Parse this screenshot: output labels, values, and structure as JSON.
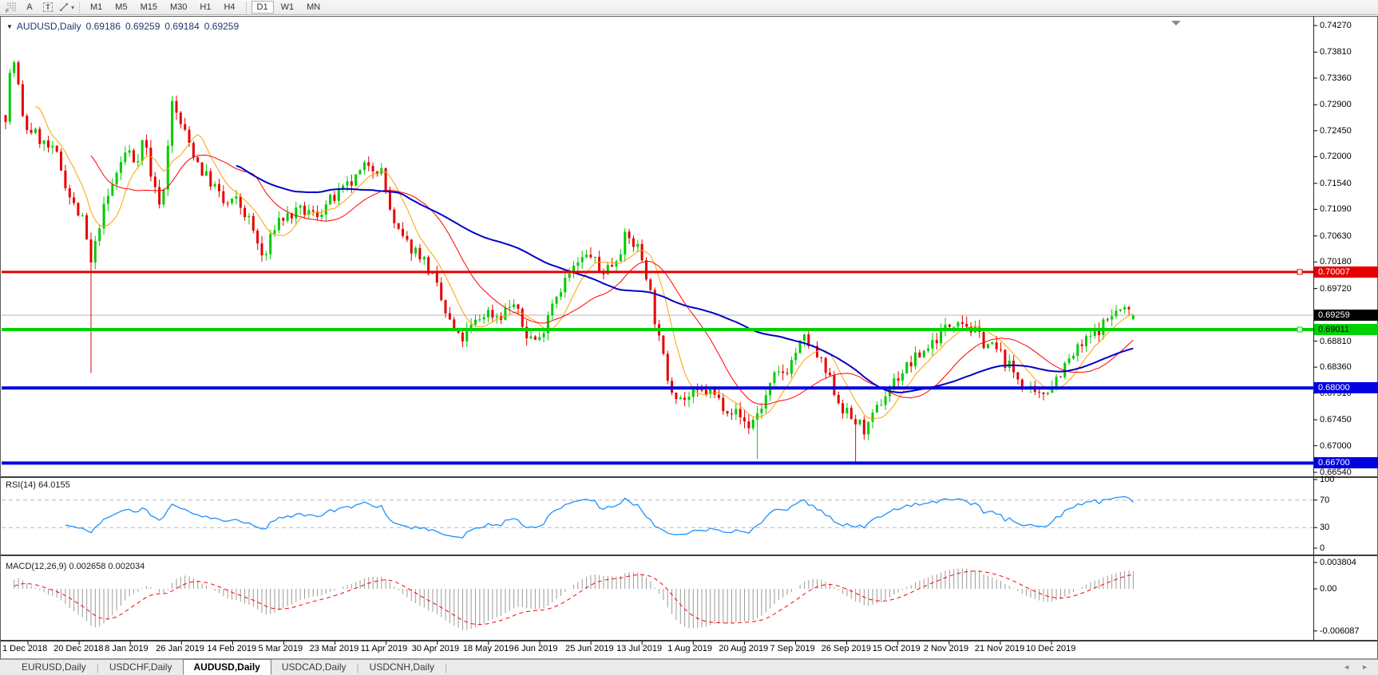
{
  "icons": {
    "collapse_triangle": "▼",
    "dropdown_caret": "▾",
    "scroll_left": "◄",
    "scroll_right": "►",
    "tab_divider": "|"
  },
  "toolbar": {
    "tools": [
      {
        "name": "dotted-grid-icon",
        "label": "F"
      },
      {
        "name": "letter-a-icon",
        "label": "A"
      },
      {
        "name": "text-box-icon",
        "label": "T"
      },
      {
        "name": "cursor-style-icon",
        "label": ""
      }
    ],
    "timeframes": [
      "M1",
      "M5",
      "M15",
      "M30",
      "H1",
      "H4",
      "D1",
      "W1",
      "MN"
    ],
    "active_timeframe": "D1",
    "separator_before": "D1"
  },
  "chart_header": {
    "symbol": "AUDUSD,Daily",
    "open": "0.69186",
    "high": "0.69259",
    "low": "0.69184",
    "close": "0.69259"
  },
  "price_axis": {
    "labels": [
      "0.74270",
      "0.73810",
      "0.73360",
      "0.72900",
      "0.72450",
      "0.72000",
      "0.71540",
      "0.71090",
      "0.70630",
      "0.70180",
      "0.69720",
      "0.68810",
      "0.68360",
      "0.67910",
      "0.67450",
      "0.67000",
      "0.66540"
    ],
    "badges": [
      {
        "value": "0.70007",
        "bg": "#e60000",
        "fg": "#ffffff"
      },
      {
        "value": "0.69259",
        "bg": "#000000",
        "fg": "#ffffff"
      },
      {
        "value": "0.69011",
        "bg": "#00d200",
        "fg": "#000000"
      },
      {
        "value": "0.68000",
        "bg": "#0000e0",
        "fg": "#ffffff"
      },
      {
        "value": "0.66700",
        "bg": "#0000e0",
        "fg": "#ffffff"
      }
    ]
  },
  "indicators": {
    "rsi": {
      "title": "RSI(14) 64.0155",
      "axis_labels": [
        "100",
        "70",
        "30",
        "0"
      ]
    },
    "macd": {
      "title": "MACD(12,26,9) 0.002658 0.002034",
      "axis_labels": [
        "0.003804",
        "0.00",
        "-0.006087"
      ]
    }
  },
  "time_axis": {
    "labels": [
      "1 Dec 2018",
      "20 Dec 2018",
      "8 Jan 2019",
      "26 Jan 2019",
      "14 Feb 2019",
      "5 Mar 2019",
      "23 Mar 2019",
      "11 Apr 2019",
      "30 Apr 2019",
      "18 May 2019",
      "6 Jun 2019",
      "25 Jun 2019",
      "13 Jul 2019",
      "1 Aug 2019",
      "20 Aug 2019",
      "7 Sep 2019",
      "26 Sep 2019",
      "15 Oct 2019",
      "2 Nov 2019",
      "21 Nov 2019",
      "10 Dec 2019"
    ]
  },
  "tabs": {
    "items": [
      {
        "label": "EURUSD,Daily",
        "active": false
      },
      {
        "label": "USDCHF,Daily",
        "active": false
      },
      {
        "label": "AUDUSD,Daily",
        "active": true
      },
      {
        "label": "USDCAD,Daily",
        "active": false
      },
      {
        "label": "USDCNH,Daily",
        "active": false
      }
    ]
  },
  "chart_data": {
    "type": "candlestick",
    "symbol": "AUDUSD",
    "timeframe": "Daily",
    "current_ohlc": {
      "open": 0.69186,
      "high": 0.69259,
      "low": 0.69184,
      "close": 0.69259
    },
    "y_range": [
      0.6654,
      0.7427
    ],
    "n_candles": 265,
    "colors": {
      "up": "#00cc00",
      "down": "#e60000",
      "ma_fast": "#ffa000",
      "ma_mid": "#ff0000",
      "ma_slow": "#0000c8",
      "rsi": "#1e90ff",
      "rsi_level": "#b8b8b8",
      "macd_hist": "#9a9a9a",
      "macd_signal": "#ff0000",
      "current_line": "#b4b4b4"
    },
    "moving_averages": [
      {
        "period": 8,
        "color_key": "ma_fast",
        "width": 1
      },
      {
        "period": 21,
        "color_key": "ma_mid",
        "width": 1
      },
      {
        "period": 55,
        "color_key": "ma_slow",
        "width": 2
      }
    ],
    "horizontal_lines": [
      {
        "price": 0.70007,
        "color": "#e60000",
        "width": 3,
        "handle": true
      },
      {
        "price": 0.69259,
        "color": "#b4b4b4",
        "width": 1,
        "handle": false
      },
      {
        "price": 0.69011,
        "color": "#00d200",
        "width": 4,
        "handle": true
      },
      {
        "price": 0.68,
        "color": "#0000e0",
        "width": 4,
        "handle": false
      },
      {
        "price": 0.667,
        "color": "#0000e0",
        "width": 4,
        "handle": false
      }
    ],
    "rsi": {
      "period": 14,
      "current": 64.0155,
      "levels": [
        70,
        30
      ],
      "range": [
        0,
        100
      ]
    },
    "macd": {
      "fast": 12,
      "slow": 26,
      "signal": 9,
      "macd_value": 0.002658,
      "signal_value": 0.002034,
      "axis": {
        "top": 0.003804,
        "zero": 0,
        "bottom": -0.006087
      }
    },
    "special_lows": [
      {
        "i": 20,
        "low": 0.6826
      },
      {
        "i": 176,
        "low": 0.6677
      },
      {
        "i": 199,
        "low": 0.667
      }
    ],
    "close_path": [
      [
        0.0,
        0.7272
      ],
      [
        0.006,
        0.738
      ],
      [
        0.01,
        0.734
      ],
      [
        0.016,
        0.7252
      ],
      [
        0.024,
        0.7245
      ],
      [
        0.034,
        0.7222
      ],
      [
        0.046,
        0.72
      ],
      [
        0.058,
        0.7124
      ],
      [
        0.069,
        0.7086
      ],
      [
        0.076,
        0.701
      ],
      [
        0.084,
        0.7092
      ],
      [
        0.1,
        0.718
      ],
      [
        0.108,
        0.7214
      ],
      [
        0.115,
        0.719
      ],
      [
        0.123,
        0.7236
      ],
      [
        0.131,
        0.7146
      ],
      [
        0.139,
        0.7116
      ],
      [
        0.147,
        0.7294
      ],
      [
        0.155,
        0.7258
      ],
      [
        0.163,
        0.7222
      ],
      [
        0.174,
        0.7176
      ],
      [
        0.186,
        0.7146
      ],
      [
        0.194,
        0.7116
      ],
      [
        0.205,
        0.7124
      ],
      [
        0.217,
        0.7086
      ],
      [
        0.229,
        0.7018
      ],
      [
        0.24,
        0.709
      ],
      [
        0.252,
        0.7098
      ],
      [
        0.264,
        0.7106
      ],
      [
        0.275,
        0.7098
      ],
      [
        0.287,
        0.7122
      ],
      [
        0.298,
        0.7138
      ],
      [
        0.31,
        0.716
      ],
      [
        0.322,
        0.719
      ],
      [
        0.333,
        0.7176
      ],
      [
        0.345,
        0.7076
      ],
      [
        0.357,
        0.7046
      ],
      [
        0.368,
        0.7032
      ],
      [
        0.38,
        0.6986
      ],
      [
        0.391,
        0.6924
      ],
      [
        0.403,
        0.688
      ],
      [
        0.415,
        0.691
      ],
      [
        0.426,
        0.6932
      ],
      [
        0.438,
        0.6924
      ],
      [
        0.45,
        0.6948
      ],
      [
        0.461,
        0.6894
      ],
      [
        0.473,
        0.688
      ],
      [
        0.484,
        0.6948
      ],
      [
        0.496,
        0.6986
      ],
      [
        0.508,
        0.7016
      ],
      [
        0.519,
        0.7032
      ],
      [
        0.527,
        0.7
      ],
      [
        0.539,
        0.7016
      ],
      [
        0.55,
        0.7062
      ],
      [
        0.562,
        0.704
      ],
      [
        0.57,
        0.6986
      ],
      [
        0.578,
        0.6894
      ],
      [
        0.589,
        0.6804
      ],
      [
        0.601,
        0.678
      ],
      [
        0.612,
        0.6788
      ],
      [
        0.624,
        0.6796
      ],
      [
        0.636,
        0.6772
      ],
      [
        0.647,
        0.6758
      ],
      [
        0.659,
        0.6734
      ],
      [
        0.67,
        0.6766
      ],
      [
        0.682,
        0.6818
      ],
      [
        0.694,
        0.6834
      ],
      [
        0.701,
        0.6864
      ],
      [
        0.709,
        0.6886
      ],
      [
        0.721,
        0.685
      ],
      [
        0.733,
        0.6804
      ],
      [
        0.74,
        0.6772
      ],
      [
        0.748,
        0.675
      ],
      [
        0.764,
        0.6726
      ],
      [
        0.775,
        0.6772
      ],
      [
        0.787,
        0.681
      ],
      [
        0.798,
        0.6834
      ],
      [
        0.81,
        0.6856
      ],
      [
        0.822,
        0.688
      ],
      [
        0.833,
        0.6902
      ],
      [
        0.845,
        0.6924
      ],
      [
        0.856,
        0.6902
      ],
      [
        0.868,
        0.688
      ],
      [
        0.88,
        0.6864
      ],
      [
        0.891,
        0.6834
      ],
      [
        0.903,
        0.6804
      ],
      [
        0.915,
        0.678
      ],
      [
        0.926,
        0.6804
      ],
      [
        0.938,
        0.6834
      ],
      [
        0.95,
        0.6864
      ],
      [
        0.961,
        0.6886
      ],
      [
        0.973,
        0.691
      ],
      [
        0.984,
        0.6932
      ],
      [
        0.992,
        0.6936
      ],
      [
        1.0,
        0.6926
      ]
    ]
  }
}
